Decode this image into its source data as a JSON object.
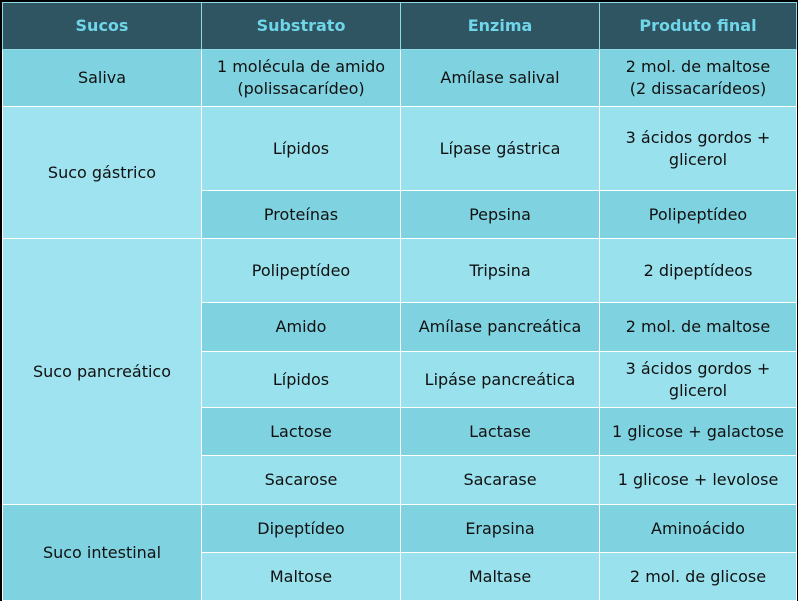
{
  "headers": [
    "Sucos",
    "Substrato",
    "Enzima",
    "Produto final"
  ],
  "juices": {
    "saliva": "Saliva",
    "gastric": "Suco gástrico",
    "pancreatic": "Suco pancreático",
    "intestinal": "Suco intestinal"
  },
  "rows": [
    {
      "substrate": "1 molécula de amido\n(polissacarídeo)",
      "enzyme": "Amílase salival",
      "product": "2 mol. de maltose\n(2 dissacarídeos)"
    },
    {
      "substrate": "Lípidos",
      "enzyme": "Lípase gástrica",
      "product": "3 ácidos gordos +\nglicerol"
    },
    {
      "substrate": "Proteínas",
      "enzyme": "Pepsina",
      "product": "Polipeptídeo"
    },
    {
      "substrate": "Polipeptídeo",
      "enzyme": "Tripsina",
      "product": "2 dipeptídeos"
    },
    {
      "substrate": "Amido",
      "enzyme": "Amílase pancreática",
      "product": "2 mol. de maltose"
    },
    {
      "substrate": "Lípidos",
      "enzyme": "Lipáse pancreática",
      "product": "3 ácidos gordos +\nglicerol"
    },
    {
      "substrate": "Lactose",
      "enzyme": "Lactase",
      "product": "1 glicose + galactose"
    },
    {
      "substrate": "Sacarose",
      "enzyme": "Sacarase",
      "product": "1 glicose + levolose"
    },
    {
      "substrate": "Dipeptídeo",
      "enzyme": "Erapsina",
      "product": "Aminoácido"
    },
    {
      "substrate": "Maltose",
      "enzyme": "Maltase",
      "product": "2 mol. de glicose"
    }
  ],
  "colors": {
    "header_bg": "#2f5562",
    "header_text": "#6fd5e8",
    "row_dark": "#7fd2e0",
    "row_light": "#98e1ed"
  }
}
